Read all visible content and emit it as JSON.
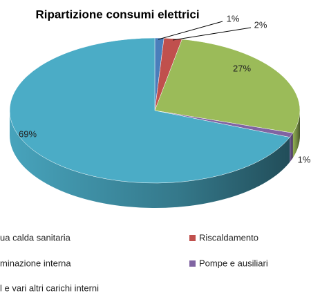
{
  "chart_data": {
    "type": "pie3d",
    "title": "Ripartizione consumi elettrici",
    "categories": [
      "ua calda sanitaria",
      "Riscaldamento",
      "minazione interna",
      "Pompe e ausiliari",
      "l e vari altri carichi interni"
    ],
    "values": [
      1,
      2,
      27,
      1,
      69
    ],
    "value_labels": [
      "1%",
      "2%",
      "27%",
      "1%",
      "69%"
    ],
    "colors": [
      "#4a7ebb",
      "#c0504d",
      "#9bbb59",
      "#8064a2",
      "#4bacc6"
    ]
  }
}
